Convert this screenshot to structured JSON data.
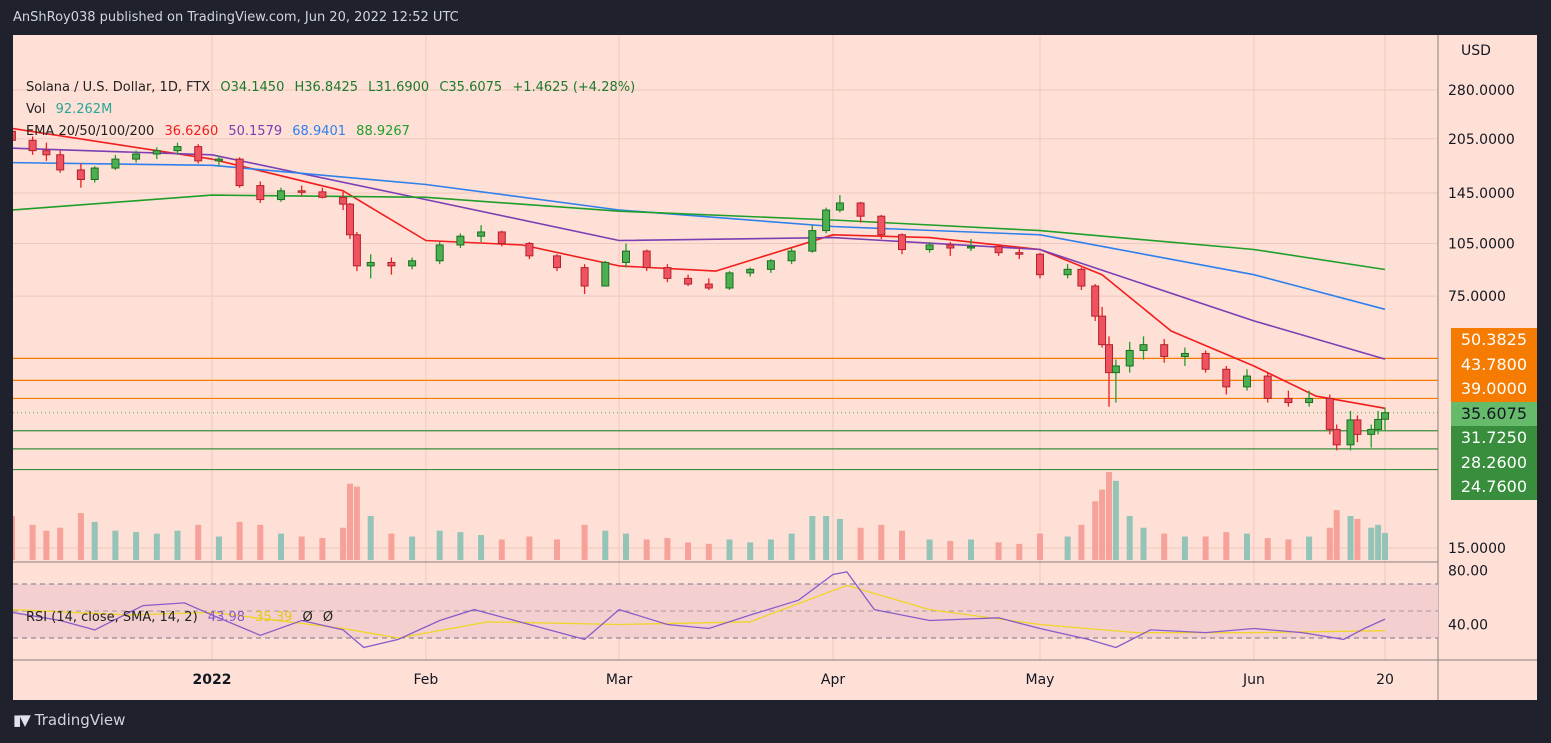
{
  "header": {
    "published": "AnShRoy038 published on TradingView.com, Jun 20, 2022 12:52 UTC"
  },
  "legend": {
    "symbol": "Solana / U.S. Dollar, 1D, FTX",
    "open": "O34.1450",
    "high": "H36.8425",
    "low": "L31.6900",
    "close": "C35.6075",
    "change": "+1.4625 (+4.28%)",
    "vol_label": "Vol",
    "vol_value": "92.262M",
    "ema_label": "EMA 20/50/100/200",
    "ema_values": [
      "36.6260",
      "50.1579",
      "68.9401",
      "88.9267"
    ],
    "rsi_label": "RSI (14, close, SMA, 14, 2)",
    "rsi_value": "43.98",
    "rsi_sma_value": "35.39",
    "rsi_extra": [
      "Ø",
      "Ø"
    ]
  },
  "footer": {
    "brand": "TradingView",
    "logo": "17"
  },
  "chart_data": {
    "type": "candlestick",
    "currency_label": "USD",
    "y_scale": "log",
    "ylim": [
      14,
      320
    ],
    "grid": true,
    "y_ticks": [
      "280.0000",
      "205.0000",
      "145.0000",
      "105.0000",
      "75.0000",
      "15.0000"
    ],
    "x_ticks": [
      {
        "label": "2022",
        "date": "2022-01-01",
        "bold": true
      },
      {
        "label": "Feb",
        "date": "2022-02-01"
      },
      {
        "label": "Mar",
        "date": "2022-03-01"
      },
      {
        "label": "Apr",
        "date": "2022-04-01"
      },
      {
        "label": "May",
        "date": "2022-05-01"
      },
      {
        "label": "Jun",
        "date": "2022-06-01"
      },
      {
        "label": "20",
        "date": "2022-06-20"
      }
    ],
    "colors": {
      "up": "#4caf50",
      "down": "#f0525f",
      "vol_up": "#94c3b7",
      "vol_down": "#f7a19b",
      "ema20": "#f21d1d",
      "ema50": "#7b3fb3",
      "ema100": "#2f80ed",
      "ema200": "#1f9e2a",
      "rsi": "#8a5cc9",
      "rsi_sma": "#efd42a",
      "resistance": "#f57c00",
      "support": "#388e3c"
    },
    "candles_columns": [
      "date",
      "open",
      "high",
      "low",
      "close",
      "volume_M"
    ],
    "candles": [
      [
        "2021-12-03",
        215,
        222,
        190,
        203,
        150
      ],
      [
        "2021-12-06",
        203,
        208,
        185,
        190,
        120
      ],
      [
        "2021-12-08",
        190,
        200,
        178,
        185,
        100
      ],
      [
        "2021-12-10",
        185,
        190,
        165,
        168,
        110
      ],
      [
        "2021-12-13",
        168,
        175,
        150,
        158,
        160
      ],
      [
        "2021-12-15",
        158,
        172,
        155,
        170,
        130
      ],
      [
        "2021-12-18",
        170,
        185,
        168,
        180,
        100
      ],
      [
        "2021-12-21",
        180,
        190,
        176,
        186,
        95
      ],
      [
        "2021-12-24",
        186,
        194,
        180,
        190,
        90
      ],
      [
        "2021-12-27",
        190,
        200,
        185,
        195,
        100
      ],
      [
        "2021-12-30",
        195,
        198,
        175,
        178,
        120
      ],
      [
        "2022-01-02",
        178,
        184,
        172,
        180,
        80
      ],
      [
        "2022-01-05",
        180,
        182,
        150,
        152,
        130
      ],
      [
        "2022-01-08",
        152,
        156,
        136,
        139,
        120
      ],
      [
        "2022-01-11",
        139,
        150,
        137,
        147,
        90
      ],
      [
        "2022-01-14",
        147,
        152,
        142,
        146,
        80
      ],
      [
        "2022-01-17",
        146,
        150,
        140,
        141,
        75
      ],
      [
        "2022-01-20",
        141,
        146,
        130,
        135,
        110
      ],
      [
        "2022-01-21",
        135,
        136,
        108,
        111,
        260
      ],
      [
        "2022-01-22",
        111,
        113,
        88,
        91,
        250
      ],
      [
        "2022-01-24",
        91,
        98,
        84,
        93,
        150
      ],
      [
        "2022-01-27",
        93,
        96,
        86,
        91,
        90
      ],
      [
        "2022-01-30",
        91,
        96,
        89,
        94,
        80
      ],
      [
        "2022-02-03",
        94,
        106,
        92,
        104,
        100
      ],
      [
        "2022-02-06",
        104,
        112,
        102,
        110,
        95
      ],
      [
        "2022-02-09",
        110,
        118,
        106,
        113,
        85
      ],
      [
        "2022-02-12",
        113,
        114,
        103,
        105,
        70
      ],
      [
        "2022-02-16",
        105,
        106,
        95,
        97,
        80
      ],
      [
        "2022-02-20",
        97,
        98,
        88,
        90,
        70
      ],
      [
        "2022-02-24",
        90,
        92,
        76,
        80,
        120
      ],
      [
        "2022-02-27",
        80,
        94,
        80,
        93,
        100
      ],
      [
        "2022-03-02",
        93,
        105,
        90,
        100,
        90
      ],
      [
        "2022-03-05",
        100,
        101,
        88,
        90,
        70
      ],
      [
        "2022-03-08",
        90,
        92,
        82,
        84,
        75
      ],
      [
        "2022-03-11",
        84,
        86,
        80,
        81,
        60
      ],
      [
        "2022-03-14",
        81,
        84,
        78,
        79,
        55
      ],
      [
        "2022-03-17",
        79,
        88,
        78,
        87,
        70
      ],
      [
        "2022-03-20",
        87,
        90,
        85,
        89,
        60
      ],
      [
        "2022-03-23",
        89,
        95,
        87,
        94,
        70
      ],
      [
        "2022-03-26",
        94,
        102,
        92,
        100,
        90
      ],
      [
        "2022-03-29",
        100,
        118,
        99,
        114,
        150
      ],
      [
        "2022-03-31",
        114,
        132,
        112,
        130,
        150
      ],
      [
        "2022-04-02",
        130,
        143,
        128,
        136,
        140
      ],
      [
        "2022-04-05",
        136,
        137,
        120,
        125,
        110
      ],
      [
        "2022-04-08",
        125,
        126,
        108,
        111,
        120
      ],
      [
        "2022-04-11",
        111,
        112,
        98,
        101,
        100
      ],
      [
        "2022-04-15",
        101,
        106,
        99,
        104,
        70
      ],
      [
        "2022-04-18",
        104,
        106,
        97,
        102,
        65
      ],
      [
        "2022-04-21",
        102,
        108,
        100,
        103,
        70
      ],
      [
        "2022-04-25",
        103,
        104,
        97,
        99,
        60
      ],
      [
        "2022-04-28",
        99,
        102,
        95,
        98,
        55
      ],
      [
        "2022-05-01",
        98,
        99,
        84,
        86,
        90
      ],
      [
        "2022-05-05",
        86,
        92,
        84,
        89,
        80
      ],
      [
        "2022-05-07",
        89,
        90,
        78,
        80,
        120
      ],
      [
        "2022-05-09",
        80,
        81,
        64,
        66,
        200
      ],
      [
        "2022-05-10",
        66,
        70,
        54,
        55,
        240
      ],
      [
        "2022-05-11",
        55,
        58,
        37,
        46,
        300
      ],
      [
        "2022-05-12",
        46,
        50,
        38,
        48,
        270
      ],
      [
        "2022-05-14",
        48,
        56,
        46,
        53,
        150
      ],
      [
        "2022-05-16",
        53,
        58,
        50,
        55,
        110
      ],
      [
        "2022-05-19",
        55,
        57,
        49,
        51,
        90
      ],
      [
        "2022-05-22",
        51,
        54,
        48,
        52,
        80
      ],
      [
        "2022-05-25",
        52,
        53,
        46,
        47,
        80
      ],
      [
        "2022-05-28",
        47,
        48,
        40,
        42,
        95
      ],
      [
        "2022-05-31",
        42,
        47,
        41,
        45,
        90
      ],
      [
        "2022-06-03",
        45,
        46,
        38,
        39,
        75
      ],
      [
        "2022-06-06",
        39,
        41,
        37,
        38,
        70
      ],
      [
        "2022-06-09",
        38,
        41,
        37,
        39,
        80
      ],
      [
        "2022-06-12",
        39,
        40,
        31,
        32,
        110
      ],
      [
        "2022-06-13",
        32,
        33,
        28,
        29,
        170
      ],
      [
        "2022-06-15",
        29,
        36,
        28,
        34,
        150
      ],
      [
        "2022-06-16",
        34,
        35,
        29.5,
        31,
        140
      ],
      [
        "2022-06-18",
        31,
        33,
        28.5,
        32,
        110
      ],
      [
        "2022-06-19",
        32,
        36,
        31,
        34.1,
        120
      ],
      [
        "2022-06-20",
        34.145,
        36.8425,
        31.69,
        35.6075,
        92.262
      ]
    ],
    "ema": [
      {
        "name": "EMA 20",
        "color_key": "ema20",
        "points": [
          [
            "2021-12-03",
            219
          ],
          [
            "2022-01-01",
            180
          ],
          [
            "2022-01-20",
            147
          ],
          [
            "2022-02-01",
            107
          ],
          [
            "2022-02-15",
            104
          ],
          [
            "2022-03-01",
            91
          ],
          [
            "2022-03-15",
            88
          ],
          [
            "2022-04-01",
            111
          ],
          [
            "2022-04-15",
            109
          ],
          [
            "2022-05-01",
            101
          ],
          [
            "2022-05-10",
            86
          ],
          [
            "2022-05-20",
            60
          ],
          [
            "2022-06-01",
            48
          ],
          [
            "2022-06-10",
            39.6
          ],
          [
            "2022-06-20",
            36.626
          ]
        ]
      },
      {
        "name": "EMA 50",
        "color_key": "ema50",
        "points": [
          [
            "2021-12-03",
            193
          ],
          [
            "2022-01-01",
            185
          ],
          [
            "2022-02-01",
            139
          ],
          [
            "2022-03-01",
            107
          ],
          [
            "2022-04-01",
            109
          ],
          [
            "2022-05-01",
            101
          ],
          [
            "2022-06-01",
            64
          ],
          [
            "2022-06-20",
            50.1579
          ]
        ]
      },
      {
        "name": "EMA 100",
        "color_key": "ema100",
        "points": [
          [
            "2021-12-03",
            176
          ],
          [
            "2022-01-01",
            173
          ],
          [
            "2022-02-01",
            153
          ],
          [
            "2022-03-01",
            130
          ],
          [
            "2022-04-01",
            117
          ],
          [
            "2022-05-01",
            111
          ],
          [
            "2022-06-01",
            86
          ],
          [
            "2022-06-20",
            68.9401
          ]
        ]
      },
      {
        "name": "EMA 200",
        "color_key": "ema200",
        "points": [
          [
            "2021-12-03",
            130
          ],
          [
            "2022-01-01",
            143
          ],
          [
            "2022-02-01",
            141
          ],
          [
            "2022-03-01",
            129
          ],
          [
            "2022-04-01",
            122
          ],
          [
            "2022-05-01",
            114
          ],
          [
            "2022-06-01",
            101
          ],
          [
            "2022-06-20",
            88.9267
          ]
        ]
      }
    ],
    "levels": {
      "resistance": [
        "50.3825",
        "43.7800",
        "39.0000"
      ],
      "current": "35.6075",
      "support": [
        "31.7250",
        "28.2600",
        "24.7600"
      ]
    },
    "rsi": {
      "ticks": [
        "80.00",
        "40.00"
      ],
      "bands": [
        70,
        50,
        30
      ],
      "values": [
        [
          "2021-12-03",
          49
        ],
        [
          "2021-12-10",
          43
        ],
        [
          "2021-12-15",
          36
        ],
        [
          "2021-12-22",
          54
        ],
        [
          "2021-12-28",
          56
        ],
        [
          "2022-01-01",
          47
        ],
        [
          "2022-01-08",
          32
        ],
        [
          "2022-01-14",
          43
        ],
        [
          "2022-01-20",
          36
        ],
        [
          "2022-01-23",
          23
        ],
        [
          "2022-01-28",
          29
        ],
        [
          "2022-02-03",
          43
        ],
        [
          "2022-02-08",
          51
        ],
        [
          "2022-02-16",
          40
        ],
        [
          "2022-02-24",
          29
        ],
        [
          "2022-03-01",
          51
        ],
        [
          "2022-03-08",
          40
        ],
        [
          "2022-03-14",
          37
        ],
        [
          "2022-03-20",
          47
        ],
        [
          "2022-03-27",
          58
        ],
        [
          "2022-04-01",
          77
        ],
        [
          "2022-04-03",
          79
        ],
        [
          "2022-04-07",
          51
        ],
        [
          "2022-04-15",
          43
        ],
        [
          "2022-04-25",
          45
        ],
        [
          "2022-05-01",
          37
        ],
        [
          "2022-05-08",
          29
        ],
        [
          "2022-05-12",
          23
        ],
        [
          "2022-05-17",
          36
        ],
        [
          "2022-05-25",
          34
        ],
        [
          "2022-06-01",
          37
        ],
        [
          "2022-06-08",
          34
        ],
        [
          "2022-06-14",
          29
        ],
        [
          "2022-06-17",
          37
        ],
        [
          "2022-06-20",
          43.98
        ]
      ],
      "sma": [
        [
          "2021-12-03",
          51
        ],
        [
          "2021-12-20",
          47
        ],
        [
          "2022-01-01",
          49
        ],
        [
          "2022-01-20",
          37
        ],
        [
          "2022-01-28",
          30
        ],
        [
          "2022-02-10",
          42
        ],
        [
          "2022-03-01",
          40
        ],
        [
          "2022-03-20",
          42
        ],
        [
          "2022-04-03",
          69
        ],
        [
          "2022-04-15",
          51
        ],
        [
          "2022-05-01",
          40
        ],
        [
          "2022-05-15",
          34
        ],
        [
          "2022-06-01",
          34
        ],
        [
          "2022-06-20",
          35.39
        ]
      ]
    }
  }
}
